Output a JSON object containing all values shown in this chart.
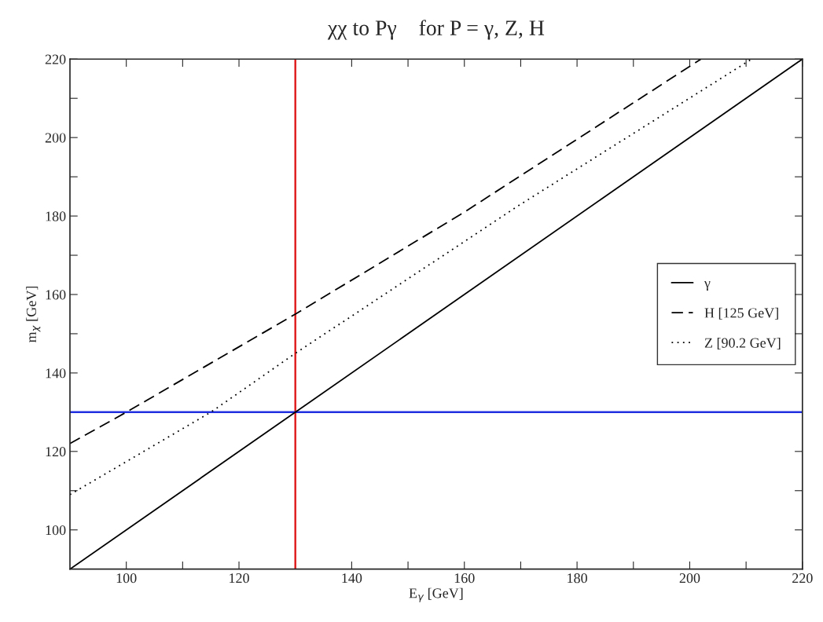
{
  "chart_data": {
    "type": "line",
    "title": "χχ to Pγ    for P = γ, Z, H",
    "xlabel": "E$_{γ}$ [GeV]",
    "ylabel": "m$_{χ}$ [GeV]",
    "xlim": [
      90,
      220
    ],
    "ylim": [
      90,
      220
    ],
    "xticks": [
      100,
      {
        "value": 110,
        "label": null
      },
      120,
      {
        "value": 130,
        "label": null
      },
      140,
      {
        "value": 150,
        "label": null
      },
      160,
      {
        "value": 170,
        "label": null
      },
      180,
      {
        "value": 190,
        "label": null
      },
      200,
      {
        "value": 210,
        "label": null
      },
      220
    ],
    "yticks": [
      100,
      {
        "value": 110,
        "label": null
      },
      120,
      {
        "value": 130,
        "label": null
      },
      140,
      {
        "value": 150,
        "label": null
      },
      160,
      {
        "value": 170,
        "label": null
      },
      180,
      {
        "value": 190,
        "label": null
      },
      200,
      {
        "value": 210,
        "label": null
      },
      220
    ],
    "series": [
      {
        "name": "γ",
        "color": "#000000",
        "line_style": "solid",
        "x": [
          90,
          220
        ],
        "values": [
          90,
          220
        ]
      },
      {
        "name": "H [125 GeV]",
        "color": "#000000",
        "line_style": "dashed",
        "x": [
          90,
          100,
          130,
          160,
          202
        ],
        "values": [
          122,
          130,
          155,
          181,
          220
        ]
      },
      {
        "name": "Z [90.2 GeV]",
        "color": "#000000",
        "line_style": "dotted",
        "x": [
          90,
          115,
          130,
          170,
          211
        ],
        "values": [
          109,
          130,
          145,
          183,
          220
        ]
      }
    ],
    "ref_lines": [
      {
        "axis": "x",
        "value": 130,
        "color": "#e02020"
      },
      {
        "axis": "y",
        "value": 130,
        "color": "#2030e0"
      }
    ],
    "legend": "right",
    "grid": false,
    "marker": "none"
  }
}
